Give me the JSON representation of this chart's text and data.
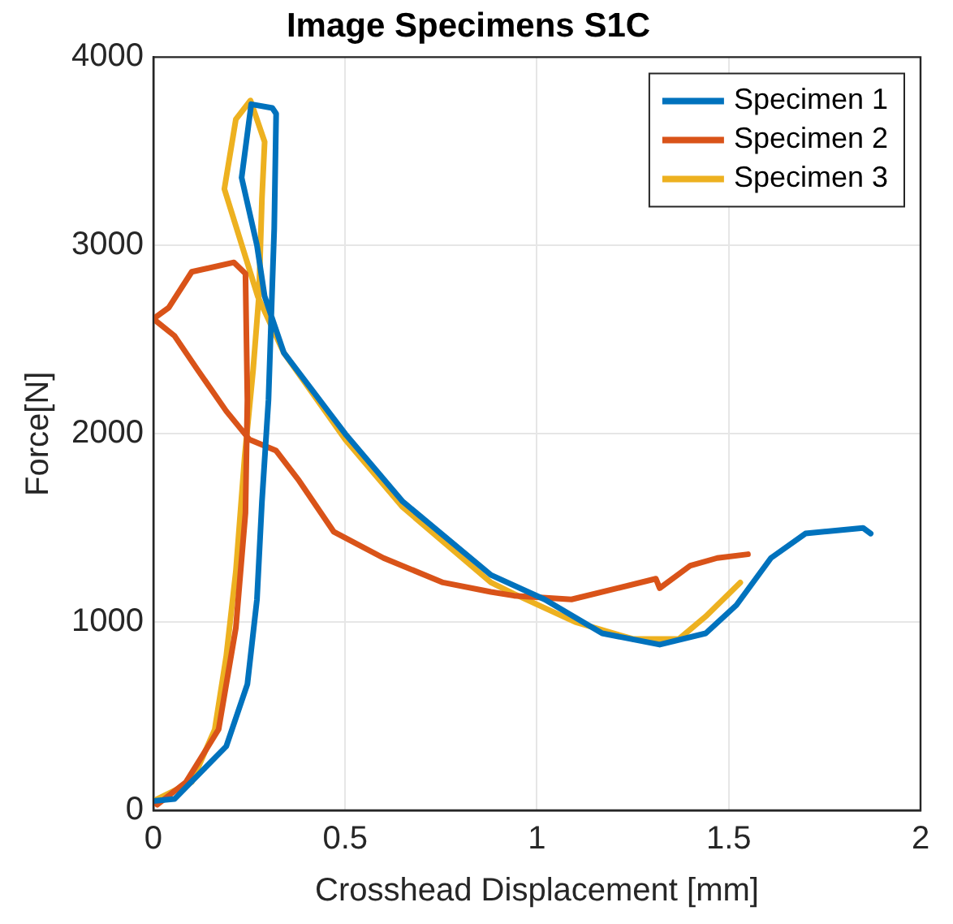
{
  "chart_data": {
    "type": "line",
    "title": "Image Specimens S1C",
    "xlabel": "Crosshead Displacement [mm]",
    "ylabel": "Force[N]",
    "xlim": [
      0,
      2
    ],
    "xticks": [
      0,
      0.5,
      1,
      1.5,
      2
    ],
    "ylim": [
      0,
      4000
    ],
    "yticks": [
      0,
      1000,
      2000,
      3000,
      4000
    ],
    "grid": true,
    "legend": "top right",
    "line_style": "solid",
    "marker": "none",
    "series": [
      {
        "name": "Specimen 1",
        "color": "#0072bd",
        "x": [
          0,
          0.055,
          0.19,
          0.245,
          0.27,
          0.283,
          0.3,
          0.31,
          0.315,
          0.32,
          0.31,
          0.255,
          0.23,
          0.27,
          0.29,
          0.34,
          0.5,
          0.65,
          0.88,
          1.02,
          1.17,
          1.32,
          1.44,
          1.52,
          1.61,
          1.7,
          1.85,
          1.87
        ],
        "values": [
          50,
          60,
          340,
          670,
          1120,
          1640,
          2180,
          2790,
          3090,
          3700,
          3730,
          3750,
          3360,
          3000,
          2730,
          2430,
          2000,
          1640,
          1250,
          1120,
          940,
          880,
          940,
          1090,
          1340,
          1470,
          1500,
          1470
        ]
      },
      {
        "name": "Specimen 2",
        "color": "#d95319",
        "x": [
          0,
          0.01,
          0.085,
          0.17,
          0.215,
          0.24,
          0.245,
          0.24,
          0.21,
          0.1,
          0.04,
          0,
          0.055,
          0.115,
          0.19,
          0.25,
          0.32,
          0.38,
          0.47,
          0.6,
          0.755,
          0.88,
          0.94,
          1.09,
          1.21,
          1.31,
          1.32,
          1.4,
          1.47,
          1.55
        ],
        "values": [
          50,
          30,
          150,
          430,
          970,
          1580,
          2180,
          2850,
          2910,
          2860,
          2670,
          2610,
          2520,
          2340,
          2120,
          1970,
          1910,
          1750,
          1480,
          1340,
          1210,
          1160,
          1140,
          1120,
          1180,
          1230,
          1180,
          1300,
          1340,
          1360
        ]
      },
      {
        "name": "Specimen 3",
        "color": "#edb120",
        "x": [
          0,
          0.1,
          0.16,
          0.19,
          0.215,
          0.238,
          0.26,
          0.275,
          0.283,
          0.29,
          0.253,
          0.215,
          0.185,
          0.272,
          0.34,
          0.5,
          0.65,
          0.88,
          0.94,
          1.1,
          1.25,
          1.37,
          1.44,
          1.53
        ],
        "values": [
          50,
          150,
          430,
          820,
          1270,
          1880,
          2340,
          2730,
          3250,
          3550,
          3770,
          3670,
          3300,
          2730,
          2430,
          1970,
          1610,
          1210,
          1150,
          1000,
          910,
          910,
          1030,
          1210
        ]
      }
    ]
  }
}
